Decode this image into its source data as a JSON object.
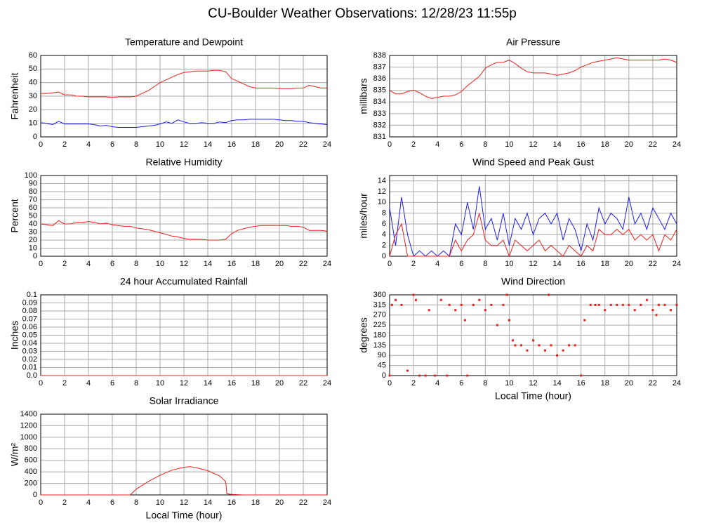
{
  "title": "CU-Boulder Weather Observations: 12/28/23 11:55p",
  "chart_data": [
    {
      "type": "line",
      "title": "Temperature and Dewpoint",
      "ylabel": "Fahrenheit",
      "x": [
        0,
        0.5,
        1,
        1.5,
        2,
        2.5,
        3,
        3.5,
        4,
        4.5,
        5,
        5.5,
        6,
        6.5,
        7,
        7.5,
        8,
        8.5,
        9,
        9.5,
        10,
        10.5,
        11,
        11.5,
        12,
        12.5,
        13,
        13.5,
        14,
        14.5,
        15,
        15.5,
        16,
        16.5,
        17,
        17.5,
        18,
        18.5,
        19,
        19.5,
        20,
        20.5,
        21,
        21.5,
        22,
        22.5,
        23,
        23.5,
        24
      ],
      "series": [
        {
          "color": "#e8201c",
          "values": [
            32,
            32,
            32.5,
            33,
            31,
            31,
            30,
            30,
            29.5,
            29.5,
            29.5,
            29.5,
            29,
            29.5,
            29.5,
            29.5,
            30,
            32,
            34,
            37,
            40,
            42,
            44,
            46,
            47.5,
            48,
            48.5,
            48.5,
            48.5,
            49,
            49,
            48,
            43,
            41,
            39,
            37,
            36,
            36,
            36,
            36,
            35.5,
            35.5,
            35.5,
            36,
            36,
            38,
            37,
            36,
            36
          ]
        },
        {
          "color": "#1c1ce8",
          "values": [
            10.5,
            10,
            9,
            11.5,
            9.5,
            9.5,
            9.5,
            9.5,
            9.5,
            9,
            8,
            8.5,
            7.5,
            7,
            7,
            7,
            7,
            7.5,
            8,
            8.5,
            9.5,
            11,
            10,
            12.5,
            11,
            10,
            10,
            10.5,
            10,
            10,
            11,
            10.5,
            12,
            12.5,
            12.5,
            13,
            13,
            13,
            13,
            13,
            12.5,
            12,
            12,
            11.5,
            11.5,
            10.5,
            10,
            9.5,
            9
          ]
        }
      ],
      "xlim": [
        0,
        24
      ],
      "xticks": [
        0,
        2,
        4,
        6,
        8,
        10,
        12,
        14,
        16,
        18,
        20,
        22,
        24
      ],
      "ylim": [
        0,
        60
      ],
      "yticks": [
        0,
        10,
        20,
        30,
        40,
        50,
        60
      ],
      "grid": true
    },
    {
      "type": "line",
      "title": "Air Pressure",
      "ylabel": "millibars",
      "x": [
        0,
        0.5,
        1,
        1.5,
        2,
        2.5,
        3,
        3.5,
        4,
        4.5,
        5,
        5.5,
        6,
        6.5,
        7,
        7.5,
        8,
        8.5,
        9,
        9.5,
        10,
        10.5,
        11,
        11.5,
        12,
        12.5,
        13,
        13.5,
        14,
        14.5,
        15,
        15.5,
        16,
        16.5,
        17,
        17.5,
        18,
        18.5,
        19,
        19.5,
        20,
        20.5,
        21,
        21.5,
        22,
        22.5,
        23,
        23.5,
        24
      ],
      "series": [
        {
          "color": "#e8201c",
          "values": [
            835,
            834.7,
            834.7,
            834.9,
            835,
            834.8,
            834.5,
            834.3,
            834.4,
            834.5,
            834.5,
            834.6,
            834.9,
            835.4,
            835.8,
            836.2,
            836.9,
            837.2,
            837.4,
            837.4,
            837.6,
            837.3,
            836.9,
            836.6,
            836.5,
            836.5,
            836.5,
            836.4,
            836.3,
            836.4,
            836.5,
            836.7,
            837,
            837.2,
            837.4,
            837.5,
            837.6,
            837.7,
            837.8,
            837.7,
            837.6,
            837.6,
            837.6,
            837.6,
            837.6,
            837.6,
            837.7,
            837.6,
            837.4
          ]
        }
      ],
      "xlim": [
        0,
        24
      ],
      "xticks": [
        0,
        2,
        4,
        6,
        8,
        10,
        12,
        14,
        16,
        18,
        20,
        22,
        24
      ],
      "ylim": [
        831,
        838
      ],
      "yticks": [
        831,
        832,
        833,
        834,
        835,
        836,
        837,
        838
      ],
      "grid": true
    },
    {
      "type": "line",
      "title": "Relative Humidity",
      "ylabel": "Percent",
      "x": [
        0,
        0.5,
        1,
        1.5,
        2,
        2.5,
        3,
        3.5,
        4,
        4.5,
        5,
        5.5,
        6,
        6.5,
        7,
        7.5,
        8,
        8.5,
        9,
        9.5,
        10,
        10.5,
        11,
        11.5,
        12,
        12.5,
        13,
        13.5,
        14,
        14.5,
        15,
        15.5,
        16,
        16.5,
        17,
        17.5,
        18,
        18.5,
        19,
        19.5,
        20,
        20.5,
        21,
        21.5,
        22,
        22.5,
        23,
        23.5,
        24
      ],
      "series": [
        {
          "color": "#e8201c",
          "values": [
            40,
            39,
            38,
            44,
            40,
            40,
            42,
            42,
            43,
            42,
            40,
            41,
            39,
            38,
            37,
            37,
            35,
            34,
            33,
            31,
            29,
            27,
            25,
            24,
            22,
            21,
            21,
            21,
            20,
            20,
            20,
            21,
            28,
            32,
            34,
            36,
            37,
            38,
            38,
            38,
            38,
            38,
            37,
            37,
            36,
            32,
            32,
            32,
            31
          ]
        }
      ],
      "xlim": [
        0,
        24
      ],
      "xticks": [
        0,
        2,
        4,
        6,
        8,
        10,
        12,
        14,
        16,
        18,
        20,
        22,
        24
      ],
      "ylim": [
        0,
        100
      ],
      "yticks": [
        0,
        10,
        20,
        30,
        40,
        50,
        60,
        70,
        80,
        90,
        100
      ],
      "grid": true
    },
    {
      "type": "line",
      "title": "Wind Speed and Peak Gust",
      "ylabel": "miles/hour",
      "x": [
        0,
        0.5,
        1,
        1.5,
        2,
        2.5,
        3,
        3.5,
        4,
        4.5,
        5,
        5.5,
        6,
        6.5,
        7,
        7.5,
        8,
        8.5,
        9,
        9.5,
        10,
        10.5,
        11,
        11.5,
        12,
        12.5,
        13,
        13.5,
        14,
        14.5,
        15,
        15.5,
        16,
        16.5,
        17,
        17.5,
        18,
        18.5,
        19,
        19.5,
        20,
        20.5,
        21,
        21.5,
        22,
        22.5,
        23,
        23.5,
        24
      ],
      "series": [
        {
          "color": "#1c1ce8",
          "values": [
            9,
            2,
            11,
            4,
            0,
            1,
            0,
            1,
            0,
            1,
            0,
            6,
            4,
            10,
            5,
            13,
            5,
            7,
            3,
            8,
            2,
            7,
            5,
            8,
            4,
            7,
            8,
            6,
            8,
            3,
            7,
            5,
            1,
            6,
            3,
            9,
            6,
            8,
            7,
            5,
            11,
            6,
            8,
            5,
            9,
            7,
            5,
            8,
            6
          ]
        },
        {
          "color": "#e8201c",
          "values": [
            0,
            4,
            6,
            0,
            0,
            0,
            0,
            0,
            0,
            0,
            0,
            3,
            1,
            3,
            4,
            8,
            3,
            2,
            2,
            3,
            0,
            3,
            2,
            1,
            2,
            3,
            1,
            2,
            1,
            0,
            2,
            1,
            0,
            2,
            1,
            5,
            4,
            4,
            5,
            4,
            5,
            3,
            4,
            3,
            4,
            1,
            4,
            3,
            5
          ]
        }
      ],
      "xlim": [
        0,
        24
      ],
      "xticks": [
        0,
        2,
        4,
        6,
        8,
        10,
        12,
        14,
        16,
        18,
        20,
        22,
        24
      ],
      "ylim": [
        0,
        15
      ],
      "yticks": [
        0,
        2,
        4,
        6,
        8,
        10,
        12,
        14
      ],
      "grid": true
    },
    {
      "type": "line",
      "title": "24 hour Accumulated Rainfall",
      "ylabel": "Inches",
      "x": [
        0,
        2,
        4,
        6,
        8,
        10,
        12,
        14,
        16,
        18,
        20,
        22,
        24
      ],
      "series": [
        {
          "color": "#e8201c",
          "values": [
            0,
            0,
            0,
            0,
            0,
            0,
            0,
            0,
            0,
            0,
            0,
            0,
            0
          ]
        }
      ],
      "xlim": [
        0,
        24
      ],
      "xticks": [
        0,
        2,
        4,
        6,
        8,
        10,
        12,
        14,
        16,
        18,
        20,
        22,
        24
      ],
      "ylim": [
        0,
        0.1
      ],
      "yticks": [
        {
          "value": 0,
          "label": "0.0"
        },
        0.01,
        0.02,
        0.03,
        0.04,
        0.05,
        0.06,
        0.07,
        0.08,
        0.09,
        0.1
      ],
      "grid": true
    },
    {
      "type": "scatter",
      "title": "Wind Direction",
      "ylabel": "degrees",
      "xlabel": "Local Time (hour)",
      "x": [
        0,
        0.2,
        0.5,
        1,
        1.5,
        2,
        2.2,
        2.5,
        3,
        3.3,
        3.8,
        4.3,
        4.8,
        5,
        5.5,
        6,
        6.3,
        6.5,
        7,
        7.5,
        8,
        8.5,
        9,
        9.5,
        9.8,
        10,
        10.3,
        10.5,
        11,
        11.5,
        12,
        12.5,
        13,
        13.3,
        13.5,
        14,
        14.5,
        15,
        15.5,
        16,
        16.3,
        16.8,
        17.2,
        17.5,
        18,
        18.5,
        19,
        19.5,
        20,
        20.5,
        21,
        21.5,
        22,
        22.3,
        22.5,
        23,
        23.5,
        24
      ],
      "series": [
        {
          "color": "#e8201c",
          "values": [
            0,
            315,
            337,
            315,
            22,
            360,
            337,
            0,
            0,
            292,
            0,
            337,
            0,
            315,
            292,
            315,
            247,
            0,
            315,
            337,
            292,
            315,
            225,
            315,
            360,
            247,
            157,
            135,
            135,
            112,
            157,
            135,
            112,
            360,
            135,
            90,
            112,
            135,
            135,
            0,
            247,
            315,
            315,
            315,
            292,
            315,
            315,
            315,
            315,
            292,
            315,
            337,
            292,
            270,
            315,
            315,
            292,
            315
          ]
        }
      ],
      "xlim": [
        0,
        24
      ],
      "xticks": [
        0,
        2,
        4,
        6,
        8,
        10,
        12,
        14,
        16,
        18,
        20,
        22,
        24
      ],
      "ylim": [
        0,
        360
      ],
      "yticks": [
        0,
        45,
        90,
        135,
        180,
        225,
        270,
        315,
        360
      ],
      "grid": true
    },
    {
      "type": "line",
      "title": "Solar Irradiance",
      "ylabel": "W/m²",
      "xlabel": "Local Time (hour)",
      "x": [
        0,
        2,
        4,
        6,
        7.5,
        8,
        9,
        10,
        11,
        12,
        12.5,
        13,
        14,
        15,
        15.5,
        15.6,
        16,
        16.5,
        17,
        18,
        20,
        22,
        24
      ],
      "series": [
        {
          "color": "#e8201c",
          "values": [
            0,
            0,
            0,
            0,
            0,
            100,
            230,
            340,
            430,
            480,
            490,
            475,
            420,
            330,
            230,
            20,
            10,
            5,
            0,
            0,
            0,
            0,
            0
          ]
        }
      ],
      "xlim": [
        0,
        24
      ],
      "xticks": [
        0,
        2,
        4,
        6,
        8,
        10,
        12,
        14,
        16,
        18,
        20,
        22,
        24
      ],
      "ylim": [
        0,
        1400
      ],
      "yticks": [
        0,
        200,
        400,
        600,
        800,
        1000,
        1200,
        1400
      ],
      "grid": true
    }
  ]
}
